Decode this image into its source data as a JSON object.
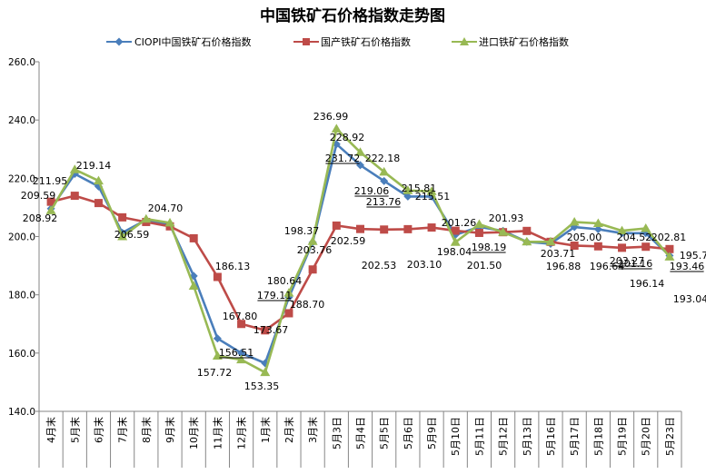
{
  "chart_data": {
    "type": "line",
    "title": "中国铁矿石价格指数走势图",
    "categories": [
      "4月末",
      "5月末",
      "6月末",
      "7月末",
      "8月末",
      "9月末",
      "10月末",
      "11月末",
      "12月末",
      "1月末",
      "2月末",
      "3月末",
      "5月3日",
      "5月4日",
      "5月5日",
      "5月6日",
      "5月9日",
      "5月10日",
      "5月11日",
      "5月12日",
      "5月13日",
      "5月16日",
      "5月17日",
      "5月18日",
      "5月19日",
      "5月20日",
      "5月23日"
    ],
    "ylim": [
      140,
      260
    ],
    "yticks": [
      "140.0",
      "160.0",
      "180.0",
      "200.0",
      "220.0",
      "240.0",
      "260.0"
    ],
    "series": [
      {
        "name": "CIOPI中国铁矿石价格指数",
        "color": "#4A7EBB",
        "marker": "diamond",
        "values": [
          209.59,
          221.5,
          217.2,
          201.3,
          205.7,
          204.0,
          186.5,
          165.0,
          160.0,
          156.51,
          179.11,
          198.0,
          231.72,
          224.5,
          219.06,
          213.76,
          213.76,
          200.6,
          203.3,
          201.93,
          198.19,
          197.5,
          203.27,
          202.5,
          201.16,
          201.16,
          193.46
        ]
      },
      {
        "name": "国产铁矿石价格指数",
        "color": "#BE4B48",
        "marker": "square",
        "values": [
          211.95,
          214.0,
          211.5,
          206.59,
          205.0,
          203.5,
          199.4,
          186.13,
          170.0,
          167.8,
          173.67,
          188.7,
          203.76,
          202.59,
          202.4,
          202.53,
          203.1,
          202.0,
          201.26,
          201.5,
          201.93,
          198.19,
          196.88,
          196.64,
          196.14,
          196.5,
          195.7
        ]
      },
      {
        "name": "进口铁矿石价格指数",
        "color": "#98B954",
        "marker": "triangle",
        "values": [
          208.92,
          223.0,
          219.14,
          200.0,
          206.0,
          204.7,
          183.0,
          159.0,
          157.72,
          153.35,
          180.64,
          198.37,
          236.99,
          228.92,
          222.18,
          215.81,
          215.51,
          198.04,
          204.2,
          201.5,
          198.19,
          198.19,
          205.0,
          204.52,
          202.0,
          202.81,
          193.04
        ]
      }
    ],
    "data_labels": [
      "211.95",
      "209.59",
      "208.92",
      "219.14",
      "206.59",
      "204.70",
      "186.13",
      "167.80",
      "173.67",
      "180.64",
      "179.11",
      "156.51",
      "157.72",
      "153.35",
      "198.37",
      "188.70",
      "203.76",
      "236.99",
      "231.72",
      "228.92",
      "202.59",
      "222.18",
      "219.06",
      "213.76",
      "202.53",
      "203.10",
      "215.81",
      "215.51",
      "201.26",
      "198.04",
      "201.50",
      "201.93",
      "198.19",
      "203.71",
      "205.00",
      "196.88",
      "204.52",
      "203.27",
      "196.64",
      "201.16",
      "196.14",
      "202.81",
      "195.70",
      "193.46",
      "193.04"
    ]
  }
}
